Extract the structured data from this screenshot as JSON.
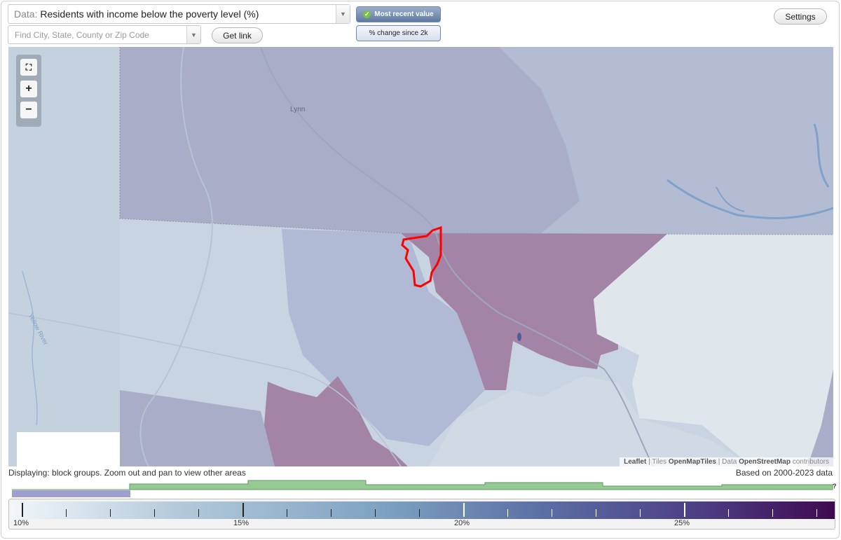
{
  "toolbar": {
    "data_prefix": "Data:",
    "data_value": "Residents with income below the poverty level (%)",
    "find_placeholder": "Find City, State, County or Zip Code",
    "get_link_label": "Get link",
    "settings_label": "Settings",
    "most_recent_label": "Most recent value",
    "change_label": "% change since 2k"
  },
  "map": {
    "place_labels": [
      "Lynn"
    ],
    "river_label": "Yellow River",
    "attribution": {
      "leaflet": "Leaflet",
      "tiles_prefix": "| Tiles",
      "tiles": "OpenMapTiles",
      "data_prefix": "| Data",
      "data": "OpenStreetMap",
      "suffix": "contributors"
    },
    "colors": {
      "highlight_outline": "#ff0000",
      "purple_region": "#a383a6",
      "light_region": "#dfe6ec"
    }
  },
  "status": {
    "displaying": "Displaying: block groups. Zoom out and pan to view other areas",
    "based_on": "Based on 2000-2023 data"
  },
  "legend": {
    "labels": [
      "10%",
      "15%",
      "20%",
      "25%"
    ],
    "question_mark": "?",
    "histogram_color": "#97c995",
    "selected_range_color": "#9f9fcf"
  }
}
